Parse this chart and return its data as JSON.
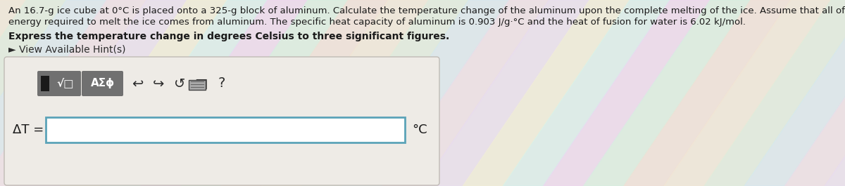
{
  "background_color": "#e8e4df",
  "main_text_line1": "An 16.7-g ice cube at 0°C is placed onto a 325-g block of aluminum. Calculate the temperature change of the aluminum upon the complete melting of the ice. Assume that all of the",
  "main_text_line2": "energy required to melt the ice comes from aluminum. The specific heat capacity of aluminum is 0.903 J/g·°C and the heat of fusion for water is 6.02 kJ/mol.",
  "bold_text": "Express the temperature change in degrees Celsius to three significant figures.",
  "hint_text": "► View Available Hint(s)",
  "delta_t_label": "ΔT =",
  "unit_label": "°C",
  "outer_box_facecolor": "#eeebe6",
  "outer_box_edgecolor": "#c0bbb5",
  "input_box_bg": "#ffffff",
  "input_box_border": "#5ba3b8",
  "toolbar_btn_color": "#707070",
  "text_color": "#1a1a1a",
  "hint_color": "#2a2a2a",
  "font_size_main": 9.5,
  "font_size_bold": 10.0,
  "font_size_hint": 10.0,
  "font_size_ui": 11,
  "fig_width": 12.0,
  "fig_height": 2.65,
  "dpi": 100,
  "rainbow_colors": [
    "#f5e8d8",
    "#e8f5d8",
    "#d8e8f5",
    "#f5d8e8",
    "#e8d8f5",
    "#f5f0d8",
    "#d8f5f0",
    "#f0d8f5",
    "#d8f5e0",
    "#f5e0d8"
  ]
}
